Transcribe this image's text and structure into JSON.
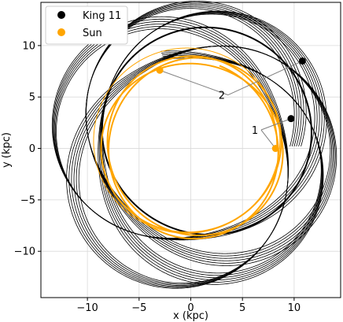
{
  "chart_data": {
    "type": "line",
    "xlabel": "x (kpc)",
    "ylabel": "y (kpc)",
    "xlim": [
      -14.5,
      14.5
    ],
    "ylim": [
      -14.5,
      14.2
    ],
    "xticks": [
      -10,
      -5,
      0,
      5,
      10
    ],
    "yticks": [
      -10,
      -5,
      0,
      5,
      10
    ],
    "xtick_labels": [
      "−10",
      "−5",
      "0",
      "5",
      "10"
    ],
    "ytick_labels": [
      "−10",
      "−5",
      "0",
      "5",
      "10"
    ],
    "grid": true,
    "legend_location": "top-left",
    "series": [
      {
        "name": "King 11",
        "color": "#000000",
        "current_position": [
          10.8,
          8.5
        ],
        "position_1": [
          9.7,
          2.9
        ]
      },
      {
        "name": "Sun",
        "color": "#FFA500",
        "current_position": [
          -3.0,
          7.6
        ],
        "position_1": [
          8.2,
          0.0
        ]
      }
    ],
    "annotations": [
      {
        "label": "1",
        "text_pos": [
          6.2,
          1.8
        ],
        "targets": [
          [
            9.7,
            2.9
          ],
          [
            8.2,
            0.0
          ]
        ]
      },
      {
        "label": "2",
        "text_pos": [
          3.0,
          5.2
        ],
        "targets": [
          [
            10.8,
            8.5
          ],
          [
            -3.0,
            7.6
          ]
        ]
      }
    ]
  }
}
